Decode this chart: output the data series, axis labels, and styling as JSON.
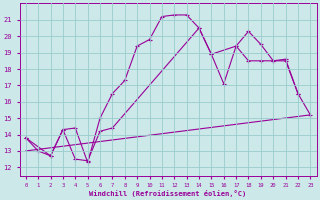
{
  "xlabel": "Windchill (Refroidissement éolien,°C)",
  "xlim": [
    -0.5,
    23.5
  ],
  "ylim": [
    11.5,
    22.0
  ],
  "yticks": [
    12,
    13,
    14,
    15,
    16,
    17,
    18,
    19,
    20,
    21
  ],
  "xticks": [
    0,
    1,
    2,
    3,
    4,
    5,
    6,
    7,
    8,
    9,
    10,
    11,
    12,
    13,
    14,
    15,
    16,
    17,
    18,
    19,
    20,
    21,
    22,
    23
  ],
  "bg_color": "#cce8e8",
  "line_color": "#990099",
  "grid_color": "#99cccc",
  "line1_x": [
    0,
    1,
    2,
    3,
    4,
    5,
    6,
    7,
    8,
    9,
    10,
    11,
    12,
    13,
    14,
    15,
    17,
    18,
    19,
    20,
    21,
    22
  ],
  "line1_y": [
    13.8,
    13.0,
    12.7,
    14.3,
    14.4,
    12.3,
    15.0,
    16.5,
    17.3,
    19.4,
    19.8,
    21.2,
    21.3,
    21.3,
    20.5,
    18.9,
    19.4,
    20.3,
    19.5,
    18.5,
    18.6,
    16.5
  ],
  "line2_x": [
    0,
    2,
    3,
    4,
    5,
    6,
    7,
    14,
    15,
    16,
    17,
    18,
    19,
    20,
    21,
    22,
    23
  ],
  "line2_y": [
    13.8,
    12.7,
    14.3,
    12.5,
    12.4,
    14.2,
    14.4,
    20.5,
    18.9,
    17.1,
    19.4,
    18.5,
    18.5,
    18.5,
    18.5,
    16.5,
    15.2
  ],
  "line3_x": [
    0,
    23
  ],
  "line3_y": [
    13.0,
    15.2
  ]
}
